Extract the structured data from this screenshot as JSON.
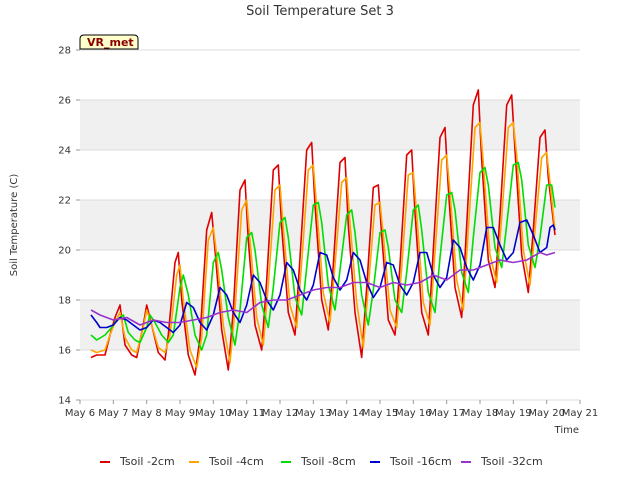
{
  "chart_data": {
    "type": "line",
    "title": "Soil Temperature Set 3",
    "xlabel": "Time",
    "ylabel": "Soil Temperature (C)",
    "ylim": [
      14,
      28
    ],
    "y_ticks": [
      14,
      16,
      18,
      20,
      22,
      24,
      26,
      28
    ],
    "xlim": [
      6,
      21
    ],
    "x_ticks": [
      6,
      7,
      8,
      9,
      10,
      11,
      12,
      13,
      14,
      15,
      16,
      17,
      18,
      19,
      20,
      21
    ],
    "x_tick_labels": [
      "May 6",
      "May 7",
      "May 8",
      "May 9",
      "May 10",
      "May 11",
      "May 12",
      "May 13",
      "May 14",
      "May 15",
      "May 16",
      "May 17",
      "May 18",
      "May 19",
      "May 20",
      "May 21"
    ],
    "x_units": "day of May",
    "grid": "horizontal bands",
    "legend_position": "bottom",
    "badge": "VR_met",
    "series": [
      {
        "name": "Tsoil -2cm",
        "color": "#dd0000",
        "x": [
          6.33,
          6.5,
          6.75,
          6.9,
          7.05,
          7.2,
          7.35,
          7.55,
          7.7,
          7.9,
          8.0,
          8.15,
          8.35,
          8.55,
          8.65,
          8.85,
          8.95,
          9.05,
          9.25,
          9.45,
          9.6,
          9.8,
          9.95,
          10.05,
          10.25,
          10.45,
          10.6,
          10.8,
          10.95,
          11.05,
          11.25,
          11.45,
          11.6,
          11.8,
          11.95,
          12.05,
          12.25,
          12.45,
          12.6,
          12.8,
          12.95,
          13.05,
          13.25,
          13.45,
          13.6,
          13.8,
          13.95,
          14.05,
          14.25,
          14.45,
          14.6,
          14.8,
          14.95,
          15.05,
          15.25,
          15.45,
          15.6,
          15.8,
          15.95,
          16.05,
          16.25,
          16.45,
          16.6,
          16.8,
          16.95,
          17.05,
          17.25,
          17.45,
          17.6,
          17.8,
          17.95,
          18.05,
          18.25,
          18.45,
          18.6,
          18.8,
          18.95,
          19.05,
          19.25,
          19.45,
          19.6,
          19.8,
          19.95,
          20.05,
          20.25
        ],
        "y": [
          15.7,
          15.8,
          15.8,
          16.6,
          17.3,
          17.8,
          16.2,
          15.8,
          15.7,
          17.0,
          17.8,
          17.0,
          15.9,
          15.6,
          16.6,
          19.5,
          19.9,
          18.0,
          15.8,
          15.0,
          16.5,
          20.8,
          21.5,
          20.0,
          16.8,
          15.2,
          17.6,
          22.4,
          22.8,
          20.4,
          17.0,
          16.0,
          18.8,
          23.2,
          23.4,
          20.9,
          17.5,
          16.6,
          19.7,
          24.0,
          24.3,
          21.8,
          18.0,
          16.8,
          19.4,
          23.5,
          23.7,
          21.0,
          17.5,
          15.7,
          18.5,
          22.5,
          22.6,
          20.6,
          17.2,
          16.6,
          19.4,
          23.8,
          24.0,
          21.5,
          17.5,
          16.6,
          20.0,
          24.5,
          24.9,
          22.5,
          18.5,
          17.3,
          21.0,
          25.8,
          26.4,
          23.6,
          19.6,
          18.5,
          21.4,
          25.8,
          26.2,
          24.0,
          19.8,
          18.3,
          20.8,
          24.5,
          24.8,
          22.9,
          20.6
        ]
      },
      {
        "name": "Tsoil -4cm",
        "color": "#ffa500",
        "x": [
          6.33,
          6.5,
          6.75,
          6.9,
          7.05,
          7.2,
          7.35,
          7.55,
          7.7,
          7.9,
          8.0,
          8.15,
          8.35,
          8.55,
          8.7,
          8.9,
          9.0,
          9.1,
          9.3,
          9.5,
          9.65,
          9.85,
          10.0,
          10.1,
          10.3,
          10.5,
          10.65,
          10.85,
          11.0,
          11.1,
          11.3,
          11.5,
          11.65,
          11.85,
          12.0,
          12.1,
          12.3,
          12.5,
          12.65,
          12.85,
          13.0,
          13.1,
          13.3,
          13.5,
          13.65,
          13.85,
          14.0,
          14.1,
          14.3,
          14.5,
          14.65,
          14.85,
          15.0,
          15.1,
          15.3,
          15.5,
          15.65,
          15.85,
          16.0,
          16.1,
          16.3,
          16.5,
          16.65,
          16.85,
          17.0,
          17.1,
          17.3,
          17.5,
          17.65,
          17.85,
          18.0,
          18.1,
          18.3,
          18.5,
          18.65,
          18.85,
          19.0,
          19.1,
          19.3,
          19.5,
          19.65,
          19.85,
          20.0,
          20.1,
          20.25
        ],
        "y": [
          16.0,
          15.9,
          16.0,
          16.6,
          17.1,
          17.5,
          16.5,
          16.0,
          15.9,
          16.9,
          17.6,
          17.0,
          16.1,
          15.9,
          16.6,
          19.0,
          19.4,
          18.0,
          16.0,
          15.3,
          16.5,
          20.4,
          20.9,
          19.8,
          17.0,
          15.5,
          17.6,
          21.6,
          22.0,
          20.4,
          17.3,
          16.2,
          18.6,
          22.4,
          22.6,
          20.9,
          17.8,
          16.9,
          19.5,
          23.2,
          23.4,
          21.7,
          18.3,
          17.1,
          19.4,
          22.7,
          22.9,
          21.1,
          17.9,
          16.1,
          18.5,
          21.8,
          21.9,
          20.6,
          17.6,
          16.9,
          19.3,
          23.0,
          23.1,
          21.4,
          17.9,
          17.0,
          19.9,
          23.6,
          23.8,
          22.3,
          18.8,
          17.6,
          20.8,
          24.9,
          25.1,
          23.5,
          19.8,
          18.7,
          21.3,
          24.9,
          25.1,
          23.8,
          20.0,
          18.6,
          20.8,
          23.7,
          23.9,
          22.7,
          20.8
        ]
      },
      {
        "name": "Tsoil -8cm",
        "color": "#00dd00",
        "x": [
          6.33,
          6.5,
          6.75,
          6.95,
          7.1,
          7.3,
          7.45,
          7.65,
          7.8,
          8.0,
          8.1,
          8.25,
          8.45,
          8.65,
          8.8,
          9.0,
          9.1,
          9.25,
          9.45,
          9.65,
          9.8,
          10.0,
          10.15,
          10.25,
          10.45,
          10.65,
          10.8,
          11.0,
          11.15,
          11.25,
          11.45,
          11.65,
          11.8,
          12.0,
          12.15,
          12.25,
          12.45,
          12.65,
          12.8,
          13.0,
          13.15,
          13.25,
          13.45,
          13.65,
          13.8,
          14.0,
          14.15,
          14.25,
          14.45,
          14.65,
          14.8,
          15.0,
          15.15,
          15.25,
          15.45,
          15.65,
          15.8,
          16.0,
          16.15,
          16.25,
          16.45,
          16.65,
          16.8,
          17.0,
          17.15,
          17.25,
          17.45,
          17.65,
          17.8,
          18.0,
          18.15,
          18.25,
          18.45,
          18.65,
          18.8,
          19.0,
          19.15,
          19.25,
          19.45,
          19.65,
          19.8,
          20.0,
          20.15,
          20.25
        ],
        "y": [
          16.6,
          16.4,
          16.6,
          16.9,
          17.2,
          17.4,
          16.7,
          16.4,
          16.3,
          16.9,
          17.4,
          17.1,
          16.6,
          16.3,
          16.6,
          18.5,
          19.0,
          18.2,
          16.6,
          16.0,
          16.6,
          19.5,
          19.9,
          19.2,
          17.3,
          16.2,
          17.6,
          20.5,
          20.7,
          20.0,
          17.8,
          16.9,
          18.5,
          21.1,
          21.3,
          20.5,
          18.1,
          17.4,
          19.3,
          21.8,
          21.9,
          21.1,
          18.6,
          17.6,
          19.2,
          21.4,
          21.6,
          20.7,
          18.2,
          17.0,
          18.4,
          20.7,
          20.8,
          20.1,
          18.0,
          17.5,
          19.1,
          21.6,
          21.8,
          20.8,
          18.3,
          17.5,
          19.7,
          22.2,
          22.3,
          21.6,
          19.1,
          18.3,
          20.5,
          23.1,
          23.3,
          22.6,
          20.1,
          19.3,
          21.0,
          23.4,
          23.5,
          22.8,
          20.2,
          19.3,
          20.5,
          22.6,
          22.6,
          21.7
        ]
      },
      {
        "name": "Tsoil -16cm",
        "color": "#0000cc",
        "x": [
          6.33,
          6.5,
          6.6,
          6.8,
          7.0,
          7.2,
          7.4,
          7.6,
          7.8,
          8.0,
          8.2,
          8.4,
          8.6,
          8.8,
          9.0,
          9.2,
          9.4,
          9.6,
          9.8,
          10.0,
          10.2,
          10.4,
          10.6,
          10.8,
          11.0,
          11.2,
          11.4,
          11.6,
          11.8,
          12.0,
          12.2,
          12.4,
          12.6,
          12.8,
          13.0,
          13.2,
          13.4,
          13.6,
          13.8,
          14.0,
          14.2,
          14.4,
          14.6,
          14.8,
          15.0,
          15.2,
          15.4,
          15.6,
          15.8,
          16.0,
          16.2,
          16.4,
          16.6,
          16.8,
          17.0,
          17.2,
          17.4,
          17.6,
          17.8,
          18.0,
          18.2,
          18.4,
          18.6,
          18.8,
          19.0,
          19.2,
          19.4,
          19.6,
          19.8,
          20.0,
          20.1,
          20.2,
          20.25
        ],
        "y": [
          17.4,
          17.1,
          16.9,
          16.9,
          17.0,
          17.3,
          17.2,
          17.0,
          16.8,
          16.9,
          17.2,
          17.1,
          16.9,
          16.7,
          17.0,
          17.9,
          17.7,
          17.1,
          16.8,
          17.4,
          18.5,
          18.2,
          17.5,
          17.1,
          17.8,
          19.0,
          18.7,
          18.0,
          17.6,
          18.2,
          19.5,
          19.2,
          18.4,
          18.0,
          18.6,
          19.9,
          19.8,
          18.9,
          18.4,
          18.8,
          19.9,
          19.6,
          18.7,
          18.1,
          18.5,
          19.5,
          19.4,
          18.6,
          18.2,
          18.7,
          19.9,
          19.9,
          19.0,
          18.5,
          18.9,
          20.4,
          20.1,
          19.3,
          18.8,
          19.4,
          20.9,
          20.9,
          20.2,
          19.6,
          19.9,
          21.1,
          21.2,
          20.6,
          19.9,
          20.1,
          20.9,
          21.0,
          20.8
        ]
      },
      {
        "name": "Tsoil -32cm",
        "color": "#9933cc",
        "x": [
          6.33,
          6.6,
          7.0,
          7.4,
          7.8,
          8.2,
          8.6,
          9.0,
          9.4,
          9.8,
          10.2,
          10.6,
          11.0,
          11.4,
          11.8,
          12.2,
          12.6,
          13.0,
          13.4,
          13.8,
          14.2,
          14.6,
          15.0,
          15.4,
          15.8,
          16.2,
          16.6,
          17.0,
          17.4,
          17.8,
          18.2,
          18.6,
          19.0,
          19.4,
          19.8,
          20.0,
          20.25
        ],
        "y": [
          17.6,
          17.4,
          17.2,
          17.3,
          17.0,
          17.2,
          17.1,
          17.1,
          17.2,
          17.3,
          17.5,
          17.6,
          17.5,
          17.9,
          18.0,
          18.0,
          18.2,
          18.4,
          18.5,
          18.5,
          18.7,
          18.7,
          18.5,
          18.7,
          18.6,
          18.7,
          19.0,
          18.8,
          19.2,
          19.2,
          19.4,
          19.6,
          19.5,
          19.6,
          19.9,
          19.8,
          19.9
        ]
      }
    ]
  }
}
